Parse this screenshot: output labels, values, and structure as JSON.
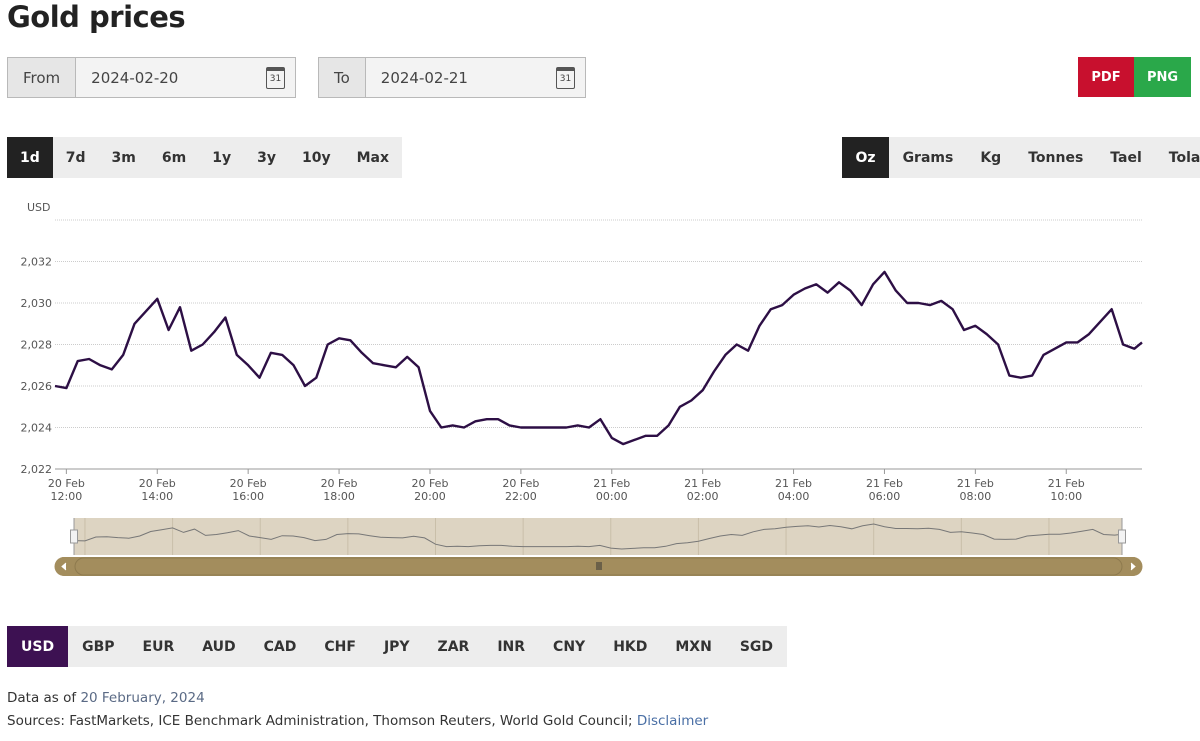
{
  "header": {
    "title": "Gold prices"
  },
  "date_range": {
    "from_label": "From",
    "from": "2024-02-20",
    "to_label": "To",
    "to": "2024-02-21",
    "calendar_icon": "31"
  },
  "export": [
    "PDF",
    "PNG"
  ],
  "periods": [
    "1d",
    "7d",
    "3m",
    "6m",
    "1y",
    "3y",
    "10y",
    "Max"
  ],
  "active_period_index": 0,
  "units": [
    "Oz",
    "Grams",
    "Kg",
    "Tonnes",
    "Tael",
    "Tola"
  ],
  "active_unit_index": 0,
  "currencies": [
    "USD",
    "GBP",
    "EUR",
    "AUD",
    "CAD",
    "CHF",
    "JPY",
    "ZAR",
    "INR",
    "CNY",
    "HKD",
    "MXN",
    "SGD"
  ],
  "active_currency_index": 0,
  "footer": {
    "as_of_label": "Data as of",
    "as_of_date": "20 February, 2024",
    "sources": "Sources: FastMarkets, ICE Benchmark Administration, Thomson Reuters, World Gold Council;",
    "disclaimer": "Disclaimer"
  },
  "chart_data": {
    "type": "line",
    "y_label": "USD",
    "grid": true,
    "xlim": [
      "20 Feb 11:45",
      "21 Feb 11:40"
    ],
    "xticks": [
      "20 Feb 12:00",
      "20 Feb 14:00",
      "20 Feb 16:00",
      "20 Feb 18:00",
      "20 Feb 20:00",
      "20 Feb 22:00",
      "21 Feb 00:00",
      "21 Feb 02:00",
      "21 Feb 04:00",
      "21 Feb 06:00",
      "21 Feb 08:00",
      "21 Feb 10:00"
    ],
    "ylim": [
      2022,
      2034
    ],
    "yticks": [
      {
        "value": 2022,
        "label": "2,022"
      },
      {
        "value": 2024,
        "label": "2,024"
      },
      {
        "value": 2026,
        "label": "2,026"
      },
      {
        "value": 2028,
        "label": "2,028"
      },
      {
        "value": 2030,
        "label": "2,030"
      },
      {
        "value": 2032,
        "label": "2,032"
      }
    ],
    "series": [
      {
        "name": "USD",
        "color": "#2d0f45",
        "x": [
          "20 Feb 11:45",
          "20 Feb 12:00",
          "20 Feb 12:15",
          "20 Feb 12:30",
          "20 Feb 12:45",
          "20 Feb 13:00",
          "20 Feb 13:15",
          "20 Feb 13:30",
          "20 Feb 13:45",
          "20 Feb 14:00",
          "20 Feb 14:15",
          "20 Feb 14:30",
          "20 Feb 14:45",
          "20 Feb 15:00",
          "20 Feb 15:15",
          "20 Feb 15:30",
          "20 Feb 15:45",
          "20 Feb 16:00",
          "20 Feb 16:15",
          "20 Feb 16:30",
          "20 Feb 16:45",
          "20 Feb 17:00",
          "20 Feb 17:15",
          "20 Feb 17:30",
          "20 Feb 17:45",
          "20 Feb 18:00",
          "20 Feb 18:15",
          "20 Feb 18:30",
          "20 Feb 18:45",
          "20 Feb 19:00",
          "20 Feb 19:15",
          "20 Feb 19:30",
          "20 Feb 19:45",
          "20 Feb 20:00",
          "20 Feb 20:15",
          "20 Feb 20:30",
          "20 Feb 20:45",
          "20 Feb 21:00",
          "20 Feb 21:15",
          "20 Feb 21:30",
          "20 Feb 21:45",
          "20 Feb 22:00",
          "20 Feb 22:15",
          "20 Feb 22:30",
          "20 Feb 22:45",
          "20 Feb 23:00",
          "20 Feb 23:15",
          "20 Feb 23:30",
          "20 Feb 23:45",
          "21 Feb 00:00",
          "21 Feb 00:15",
          "21 Feb 00:30",
          "21 Feb 00:45",
          "21 Feb 01:00",
          "21 Feb 01:15",
          "21 Feb 01:30",
          "21 Feb 01:45",
          "21 Feb 02:00",
          "21 Feb 02:15",
          "21 Feb 02:30",
          "21 Feb 02:45",
          "21 Feb 03:00",
          "21 Feb 03:15",
          "21 Feb 03:30",
          "21 Feb 03:45",
          "21 Feb 04:00",
          "21 Feb 04:15",
          "21 Feb 04:30",
          "21 Feb 04:45",
          "21 Feb 05:00",
          "21 Feb 05:15",
          "21 Feb 05:30",
          "21 Feb 05:45",
          "21 Feb 06:00",
          "21 Feb 06:15",
          "21 Feb 06:30",
          "21 Feb 06:45",
          "21 Feb 07:00",
          "21 Feb 07:15",
          "21 Feb 07:30",
          "21 Feb 07:45",
          "21 Feb 08:00",
          "21 Feb 08:15",
          "21 Feb 08:30",
          "21 Feb 08:45",
          "21 Feb 09:00",
          "21 Feb 09:15",
          "21 Feb 09:30",
          "21 Feb 09:45",
          "21 Feb 10:00",
          "21 Feb 10:15",
          "21 Feb 10:30",
          "21 Feb 10:45",
          "21 Feb 11:00",
          "21 Feb 11:15",
          "21 Feb 11:30",
          "21 Feb 11:40"
        ],
        "values": [
          2026.0,
          2025.9,
          2027.2,
          2027.3,
          2027.0,
          2026.8,
          2027.5,
          2029.0,
          2029.6,
          2030.2,
          2028.7,
          2029.8,
          2027.7,
          2028.0,
          2028.6,
          2029.3,
          2027.5,
          2027.0,
          2026.4,
          2027.6,
          2027.5,
          2027.0,
          2026.0,
          2026.4,
          2028.0,
          2028.3,
          2028.2,
          2027.6,
          2027.1,
          2027.0,
          2026.9,
          2027.4,
          2026.9,
          2024.8,
          2024.0,
          2024.1,
          2024.0,
          2024.3,
          2024.4,
          2024.4,
          2024.1,
          2024.0,
          2024.0,
          2024.0,
          2024.0,
          2024.0,
          2024.1,
          2024.0,
          2024.4,
          2023.5,
          2023.2,
          2023.4,
          2023.6,
          2023.6,
          2024.1,
          2025.0,
          2025.3,
          2025.8,
          2026.7,
          2027.5,
          2028.0,
          2027.7,
          2028.9,
          2029.7,
          2029.9,
          2030.4,
          2030.7,
          2030.9,
          2030.5,
          2031.0,
          2030.6,
          2029.9,
          2030.9,
          2031.5,
          2030.6,
          2030.0,
          2030.0,
          2029.9,
          2030.1,
          2029.7,
          2028.7,
          2028.9,
          2028.5,
          2028.0,
          2026.5,
          2026.4,
          2026.5,
          2027.5,
          2027.8,
          2028.1,
          2028.1,
          2028.5,
          2029.1,
          2029.7,
          2028.0,
          2027.8,
          2028.1
        ]
      }
    ]
  }
}
